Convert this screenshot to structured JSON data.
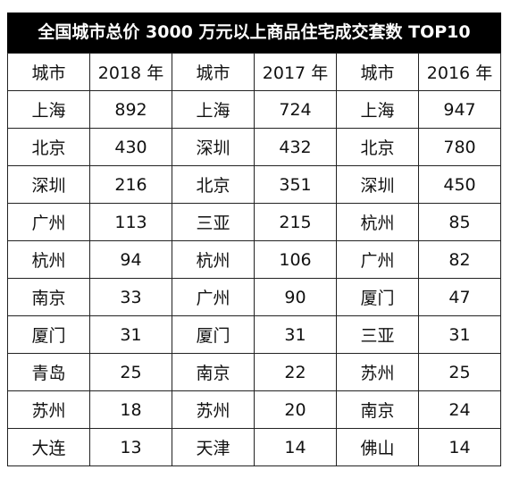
{
  "title": "全国城市总价 3000 万元以上商品住宅成交套数 TOP10",
  "headers": [
    "城市",
    "2018 年",
    "城市",
    "2017 年",
    "城市",
    "2016 年"
  ],
  "rows": [
    [
      "上海",
      "892",
      "上海",
      "724",
      "上海",
      "947"
    ],
    [
      "北京",
      "430",
      "深圳",
      "432",
      "北京",
      "780"
    ],
    [
      "深圳",
      "216",
      "北京",
      "351",
      "深圳",
      "450"
    ],
    [
      "广州",
      "113",
      "三亚",
      "215",
      "杭州",
      "85"
    ],
    [
      "杭州",
      "94",
      "杭州",
      "106",
      "广州",
      "82"
    ],
    [
      "南京",
      "33",
      "广州",
      "90",
      "厦门",
      "47"
    ],
    [
      "厦门",
      "31",
      "厦门",
      "31",
      "三亚",
      "31"
    ],
    [
      "青岛",
      "25",
      "南京",
      "22",
      "苏州",
      "25"
    ],
    [
      "苏州",
      "18",
      "苏州",
      "20",
      "南京",
      "24"
    ],
    [
      "大连",
      "13",
      "天津",
      "14",
      "佛山",
      "14"
    ]
  ]
}
